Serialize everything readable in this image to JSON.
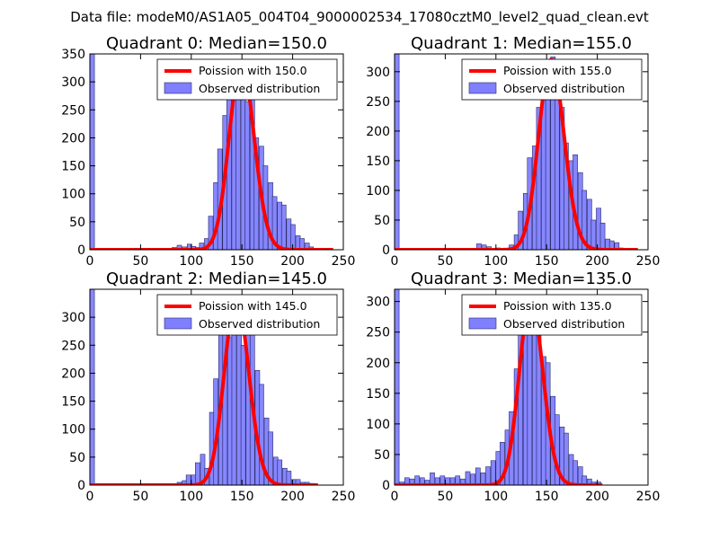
{
  "figure_title": "Data file: modeM0/AS1A05_004T04_9000002534_17080cztM0_level2_quad_clean.evt",
  "colors": {
    "observed": "#7f7fff",
    "observed_edge": "#2a2a6a",
    "poisson": "#ff0000"
  },
  "chart_data": [
    {
      "type": "bar",
      "title": "Quadrant 0: Median=150.0",
      "xlim": [
        0,
        250
      ],
      "ylim": [
        0,
        350
      ],
      "xticks": [
        0,
        50,
        100,
        150,
        200,
        250
      ],
      "yticks": [
        0,
        50,
        100,
        150,
        200,
        250,
        300,
        350
      ],
      "legend_position": "top-right",
      "legend": [
        "Poission with 150.0",
        "Observed distribution"
      ],
      "bin_width": 4.5,
      "bins": [
        {
          "x": 0,
          "y": 350
        },
        {
          "x": 81,
          "y": 4
        },
        {
          "x": 86,
          "y": 8
        },
        {
          "x": 91,
          "y": 5
        },
        {
          "x": 96,
          "y": 10
        },
        {
          "x": 100,
          "y": 6
        },
        {
          "x": 104,
          "y": 4
        },
        {
          "x": 108,
          "y": 12
        },
        {
          "x": 113,
          "y": 20
        },
        {
          "x": 117,
          "y": 60
        },
        {
          "x": 122,
          "y": 120
        },
        {
          "x": 126,
          "y": 180
        },
        {
          "x": 131,
          "y": 240
        },
        {
          "x": 135,
          "y": 305
        },
        {
          "x": 140,
          "y": 290
        },
        {
          "x": 144,
          "y": 320
        },
        {
          "x": 149,
          "y": 305
        },
        {
          "x": 153,
          "y": 265
        },
        {
          "x": 158,
          "y": 275
        },
        {
          "x": 162,
          "y": 200
        },
        {
          "x": 167,
          "y": 185
        },
        {
          "x": 171,
          "y": 150
        },
        {
          "x": 176,
          "y": 120
        },
        {
          "x": 180,
          "y": 95
        },
        {
          "x": 185,
          "y": 85
        },
        {
          "x": 189,
          "y": 80
        },
        {
          "x": 194,
          "y": 55
        },
        {
          "x": 198,
          "y": 45
        },
        {
          "x": 203,
          "y": 25
        },
        {
          "x": 207,
          "y": 20
        },
        {
          "x": 212,
          "y": 12
        },
        {
          "x": 216,
          "y": 5
        },
        {
          "x": 220,
          "y": 2
        }
      ],
      "poisson_lambda": 150.0,
      "poisson_scale": 335,
      "poisson_xrange": [
        0,
        240
      ]
    },
    {
      "type": "bar",
      "title": "Quadrant 1: Median=155.0",
      "xlim": [
        0,
        250
      ],
      "ylim": [
        0,
        330
      ],
      "xticks": [
        0,
        50,
        100,
        150,
        200,
        250
      ],
      "yticks": [
        0,
        50,
        100,
        150,
        200,
        250,
        300
      ],
      "legend_position": "top-right",
      "legend": [
        "Poission with 155.0",
        "Observed distribution"
      ],
      "bin_width": 4.5,
      "bins": [
        {
          "x": 0,
          "y": 330
        },
        {
          "x": 81,
          "y": 10
        },
        {
          "x": 86,
          "y": 8
        },
        {
          "x": 91,
          "y": 5
        },
        {
          "x": 100,
          "y": 3
        },
        {
          "x": 109,
          "y": 2
        },
        {
          "x": 113,
          "y": 8
        },
        {
          "x": 118,
          "y": 25
        },
        {
          "x": 122,
          "y": 65
        },
        {
          "x": 127,
          "y": 95
        },
        {
          "x": 131,
          "y": 155
        },
        {
          "x": 136,
          "y": 175
        },
        {
          "x": 140,
          "y": 240
        },
        {
          "x": 145,
          "y": 260
        },
        {
          "x": 149,
          "y": 265
        },
        {
          "x": 154,
          "y": 325
        },
        {
          "x": 158,
          "y": 270
        },
        {
          "x": 163,
          "y": 240
        },
        {
          "x": 167,
          "y": 180
        },
        {
          "x": 172,
          "y": 150
        },
        {
          "x": 176,
          "y": 160
        },
        {
          "x": 181,
          "y": 130
        },
        {
          "x": 185,
          "y": 100
        },
        {
          "x": 190,
          "y": 85
        },
        {
          "x": 194,
          "y": 50
        },
        {
          "x": 199,
          "y": 70
        },
        {
          "x": 203,
          "y": 45
        },
        {
          "x": 208,
          "y": 18
        },
        {
          "x": 212,
          "y": 15
        },
        {
          "x": 217,
          "y": 12
        },
        {
          "x": 221,
          "y": 3
        }
      ],
      "poisson_lambda": 155.0,
      "poisson_scale": 320,
      "poisson_xrange": [
        0,
        240
      ]
    },
    {
      "type": "bar",
      "title": "Quadrant 2: Median=145.0",
      "xlim": [
        0,
        250
      ],
      "ylim": [
        0,
        350
      ],
      "xticks": [
        0,
        50,
        100,
        150,
        200,
        250
      ],
      "yticks": [
        0,
        50,
        100,
        150,
        200,
        250,
        300
      ],
      "legend_position": "top-right",
      "legend": [
        "Poission with 145.0",
        "Observed distribution"
      ],
      "bin_width": 4.5,
      "bins": [
        {
          "x": 0,
          "y": 350
        },
        {
          "x": 86,
          "y": 5
        },
        {
          "x": 91,
          "y": 8
        },
        {
          "x": 95,
          "y": 18
        },
        {
          "x": 100,
          "y": 18
        },
        {
          "x": 104,
          "y": 40
        },
        {
          "x": 109,
          "y": 55
        },
        {
          "x": 113,
          "y": 30
        },
        {
          "x": 118,
          "y": 130
        },
        {
          "x": 122,
          "y": 190
        },
        {
          "x": 127,
          "y": 280
        },
        {
          "x": 131,
          "y": 320
        },
        {
          "x": 136,
          "y": 265
        },
        {
          "x": 140,
          "y": 325
        },
        {
          "x": 145,
          "y": 315
        },
        {
          "x": 149,
          "y": 250
        },
        {
          "x": 154,
          "y": 290
        },
        {
          "x": 158,
          "y": 270
        },
        {
          "x": 163,
          "y": 205
        },
        {
          "x": 167,
          "y": 180
        },
        {
          "x": 172,
          "y": 120
        },
        {
          "x": 176,
          "y": 95
        },
        {
          "x": 181,
          "y": 50
        },
        {
          "x": 185,
          "y": 45
        },
        {
          "x": 190,
          "y": 30
        },
        {
          "x": 194,
          "y": 25
        },
        {
          "x": 199,
          "y": 10
        },
        {
          "x": 203,
          "y": 10
        },
        {
          "x": 208,
          "y": 5
        },
        {
          "x": 212,
          "y": 5
        },
        {
          "x": 217,
          "y": 3
        }
      ],
      "poisson_lambda": 145.0,
      "poisson_scale": 335,
      "poisson_xrange": [
        0,
        225
      ]
    },
    {
      "type": "bar",
      "title": "Quadrant 3: Median=135.0",
      "xlim": [
        0,
        250
      ],
      "ylim": [
        0,
        320
      ],
      "xticks": [
        0,
        50,
        100,
        150,
        200,
        250
      ],
      "yticks": [
        0,
        50,
        100,
        150,
        200,
        250,
        300
      ],
      "legend_position": "top-right",
      "legend": [
        "Poission with 135.0",
        "Observed distribution"
      ],
      "bin_width": 4.5,
      "bins": [
        {
          "x": 0,
          "y": 320
        },
        {
          "x": 5,
          "y": 5
        },
        {
          "x": 10,
          "y": 12
        },
        {
          "x": 15,
          "y": 10
        },
        {
          "x": 20,
          "y": 15
        },
        {
          "x": 25,
          "y": 12
        },
        {
          "x": 30,
          "y": 8
        },
        {
          "x": 35,
          "y": 20
        },
        {
          "x": 40,
          "y": 12
        },
        {
          "x": 45,
          "y": 15
        },
        {
          "x": 50,
          "y": 12
        },
        {
          "x": 55,
          "y": 12
        },
        {
          "x": 60,
          "y": 15
        },
        {
          "x": 65,
          "y": 10
        },
        {
          "x": 70,
          "y": 22
        },
        {
          "x": 75,
          "y": 18
        },
        {
          "x": 80,
          "y": 28
        },
        {
          "x": 85,
          "y": 20
        },
        {
          "x": 90,
          "y": 30
        },
        {
          "x": 95,
          "y": 40
        },
        {
          "x": 100,
          "y": 55
        },
        {
          "x": 104,
          "y": 70
        },
        {
          "x": 109,
          "y": 90
        },
        {
          "x": 113,
          "y": 120
        },
        {
          "x": 118,
          "y": 190
        },
        {
          "x": 122,
          "y": 270
        },
        {
          "x": 127,
          "y": 255
        },
        {
          "x": 131,
          "y": 295
        },
        {
          "x": 136,
          "y": 270
        },
        {
          "x": 140,
          "y": 260
        },
        {
          "x": 145,
          "y": 210
        },
        {
          "x": 149,
          "y": 200
        },
        {
          "x": 154,
          "y": 145
        },
        {
          "x": 158,
          "y": 115
        },
        {
          "x": 163,
          "y": 95
        },
        {
          "x": 167,
          "y": 85
        },
        {
          "x": 172,
          "y": 50
        },
        {
          "x": 176,
          "y": 40
        },
        {
          "x": 181,
          "y": 30
        },
        {
          "x": 185,
          "y": 15
        },
        {
          "x": 190,
          "y": 10
        },
        {
          "x": 194,
          "y": 5
        },
        {
          "x": 199,
          "y": 5
        }
      ],
      "poisson_lambda": 135.0,
      "poisson_scale": 305,
      "poisson_xrange": [
        0,
        205
      ]
    }
  ]
}
